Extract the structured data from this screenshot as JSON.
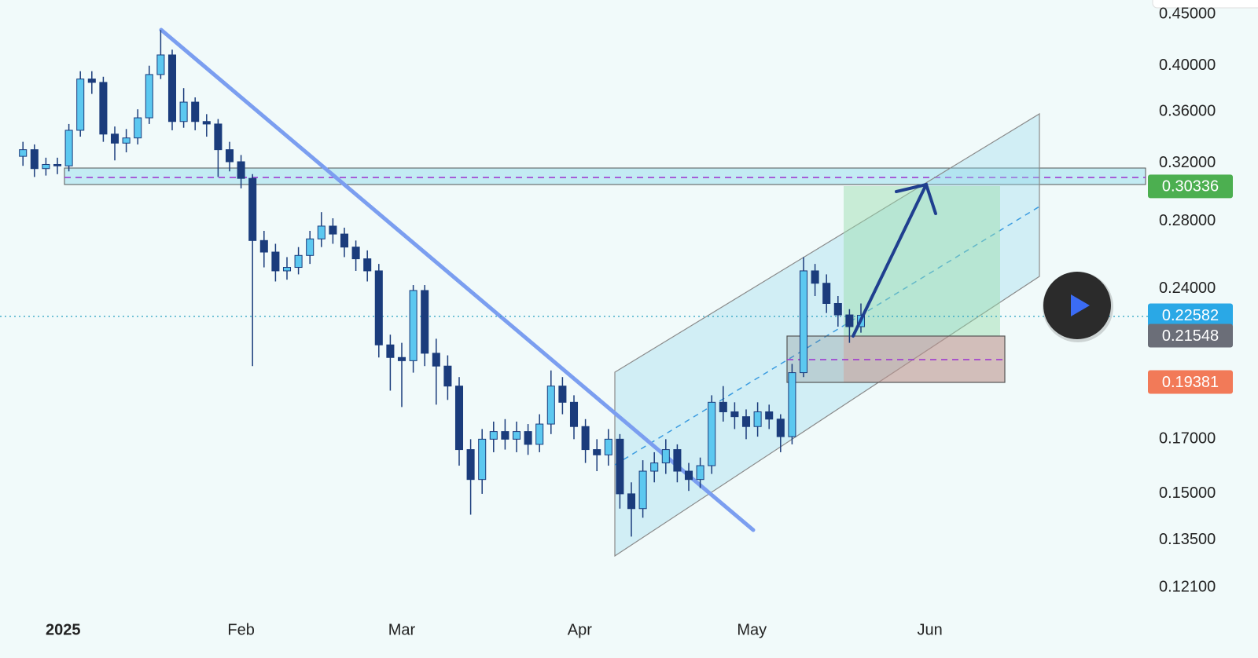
{
  "chart_data": {
    "type": "candlestick",
    "log_scale": true,
    "up_color": "#5cc8f0",
    "down_color": "#1b3c7c",
    "wick_color": "#1b3c7c",
    "xlim": [
      -11,
      189
    ],
    "ylim": [
      0.1143,
      0.465
    ],
    "xticks": [
      {
        "value": 0,
        "label": "2025"
      },
      {
        "value": 31,
        "label": "Feb"
      },
      {
        "value": 59,
        "label": "Mar"
      },
      {
        "value": 90,
        "label": "Apr"
      },
      {
        "value": 120,
        "label": "May"
      },
      {
        "value": 151,
        "label": "Jun"
      }
    ],
    "yticks": [
      {
        "value": 0.45,
        "label": "0.45000"
      },
      {
        "value": 0.4,
        "label": "0.40000"
      },
      {
        "value": 0.36,
        "label": "0.36000"
      },
      {
        "value": 0.32,
        "label": "0.32000"
      },
      {
        "value": 0.28,
        "label": "0.28000"
      },
      {
        "value": 0.24,
        "label": "0.24000"
      },
      {
        "value": 0.17,
        "label": "0.17000"
      },
      {
        "value": 0.15,
        "label": "0.15000"
      },
      {
        "value": 0.135,
        "label": "0.13500"
      },
      {
        "value": 0.121,
        "label": "0.12100"
      }
    ],
    "x": [
      -7,
      -5,
      -3,
      -1,
      1,
      3,
      5,
      7,
      9,
      11,
      13,
      15,
      17,
      19,
      21,
      23,
      25,
      27,
      29,
      31,
      33,
      35,
      37,
      39,
      41,
      43,
      45,
      47,
      49,
      51,
      53,
      55,
      57,
      59,
      61,
      63,
      65,
      67,
      69,
      71,
      73,
      75,
      77,
      79,
      81,
      83,
      85,
      87,
      89,
      91,
      93,
      95,
      97,
      99,
      101,
      103,
      105,
      107,
      109,
      111,
      113,
      115,
      117,
      119,
      121,
      123,
      125,
      127,
      129,
      131,
      133,
      135,
      137,
      139
    ],
    "open": [
      0.325,
      0.33,
      0.316,
      0.319,
      0.318,
      0.345,
      0.388,
      0.385,
      0.342,
      0.335,
      0.339,
      0.355,
      0.392,
      0.41,
      0.352,
      0.368,
      0.352,
      0.35,
      0.33,
      0.321,
      0.309,
      0.268,
      0.261,
      0.25,
      0.252,
      0.259,
      0.269,
      0.277,
      0.272,
      0.264,
      0.257,
      0.25,
      0.211,
      0.205,
      0.2035,
      0.239,
      0.207,
      0.201,
      0.192,
      0.166,
      0.155,
      0.17,
      0.173,
      0.17,
      0.173,
      0.168,
      0.176,
      0.192,
      0.185,
      0.175,
      0.166,
      0.164,
      0.17,
      0.15,
      0.145,
      0.158,
      0.161,
      0.166,
      0.158,
      0.155,
      0.16,
      0.185,
      0.181,
      0.179,
      0.175,
      0.181,
      0.178,
      0.171,
      0.198,
      0.25,
      0.243,
      0.232,
      0.226,
      0.22
    ],
    "high": [
      0.336,
      0.334,
      0.324,
      0.324,
      0.35,
      0.395,
      0.395,
      0.39,
      0.348,
      0.346,
      0.362,
      0.4,
      0.434,
      0.415,
      0.38,
      0.372,
      0.358,
      0.354,
      0.336,
      0.326,
      0.312,
      0.274,
      0.266,
      0.258,
      0.264,
      0.274,
      0.286,
      0.282,
      0.276,
      0.268,
      0.262,
      0.254,
      0.216,
      0.212,
      0.242,
      0.242,
      0.214,
      0.206,
      0.196,
      0.17,
      0.174,
      0.177,
      0.178,
      0.177,
      0.176,
      0.18,
      0.199,
      0.196,
      0.188,
      0.178,
      0.17,
      0.174,
      0.172,
      0.154,
      0.162,
      0.165,
      0.17,
      0.168,
      0.161,
      0.163,
      0.188,
      0.192,
      0.185,
      0.182,
      0.185,
      0.184,
      0.18,
      0.202,
      0.258,
      0.254,
      0.248,
      0.236,
      0.229,
      0.232
    ],
    "low": [
      0.318,
      0.31,
      0.311,
      0.312,
      0.314,
      0.34,
      0.375,
      0.336,
      0.322,
      0.328,
      0.334,
      0.35,
      0.388,
      0.345,
      0.347,
      0.345,
      0.34,
      0.31,
      0.314,
      0.302,
      0.201,
      0.252,
      0.244,
      0.245,
      0.248,
      0.254,
      0.264,
      0.266,
      0.258,
      0.25,
      0.244,
      0.205,
      0.19,
      0.183,
      0.198,
      0.201,
      0.184,
      0.186,
      0.16,
      0.143,
      0.15,
      0.165,
      0.166,
      0.165,
      0.164,
      0.165,
      0.172,
      0.18,
      0.17,
      0.161,
      0.158,
      0.16,
      0.145,
      0.136,
      0.142,
      0.154,
      0.157,
      0.154,
      0.151,
      0.152,
      0.157,
      0.177,
      0.174,
      0.17,
      0.171,
      0.174,
      0.165,
      0.168,
      0.196,
      0.236,
      0.227,
      0.22,
      0.212,
      0.217
    ],
    "close": [
      0.33,
      0.316,
      0.319,
      0.318,
      0.345,
      0.388,
      0.385,
      0.342,
      0.335,
      0.339,
      0.355,
      0.392,
      0.41,
      0.352,
      0.368,
      0.352,
      0.35,
      0.33,
      0.321,
      0.309,
      0.268,
      0.261,
      0.25,
      0.252,
      0.259,
      0.269,
      0.277,
      0.272,
      0.264,
      0.257,
      0.25,
      0.211,
      0.205,
      0.2035,
      0.239,
      0.207,
      0.201,
      0.192,
      0.166,
      0.155,
      0.17,
      0.173,
      0.17,
      0.173,
      0.168,
      0.176,
      0.192,
      0.185,
      0.175,
      0.166,
      0.164,
      0.17,
      0.15,
      0.145,
      0.158,
      0.161,
      0.166,
      0.158,
      0.155,
      0.16,
      0.185,
      0.181,
      0.179,
      0.175,
      0.181,
      0.178,
      0.171,
      0.198,
      0.25,
      0.243,
      0.232,
      0.226,
      0.22,
      0.2258
    ],
    "price_labels": {
      "values": [
        0.30336,
        0.22582,
        0.21548,
        0.19381
      ],
      "colors": [
        "#4caf50",
        "#2aa8e6",
        "#6b6e78",
        "#f27a58"
      ]
    }
  }
}
